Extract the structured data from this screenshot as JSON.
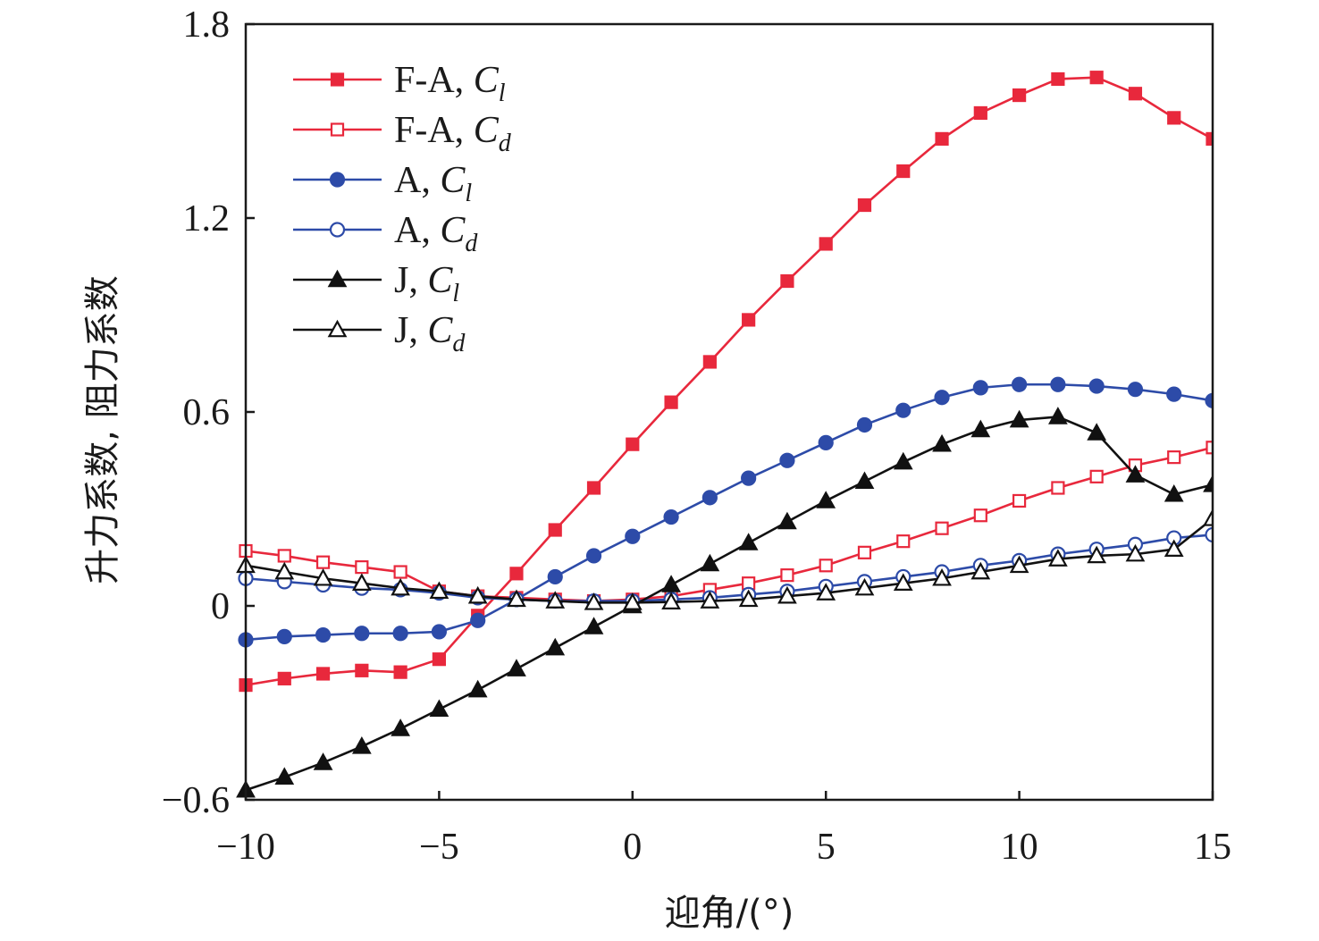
{
  "chart_data": {
    "type": "line",
    "title": "",
    "xlabel": "迎角/(°)",
    "ylabel": "升力系数, 阻力系数",
    "xlim": [
      -10,
      15
    ],
    "ylim": [
      -0.6,
      1.8
    ],
    "xticks": [
      -10,
      -5,
      0,
      5,
      10,
      15
    ],
    "yticks": [
      -0.6,
      0,
      0.6,
      1.2,
      1.8
    ],
    "xtick_labels": [
      "−10",
      "−5",
      "0",
      "5",
      "10",
      "15"
    ],
    "ytick_labels": [
      "−0.6",
      "0",
      "0.6",
      "1.2",
      "1.8"
    ],
    "grid": false,
    "legend_position": "top-left",
    "x": [
      -10,
      -9,
      -8,
      -7,
      -6,
      -5,
      -4,
      -3,
      -2,
      -1,
      0,
      1,
      2,
      3,
      4,
      5,
      6,
      7,
      8,
      9,
      10,
      11,
      12,
      13,
      14,
      15
    ],
    "series": [
      {
        "name": "F-A, Cl",
        "label_main": "F-A, ",
        "label_var": "C",
        "label_sub": "l",
        "color": "#e8283c",
        "marker": "square",
        "filled": true,
        "values": [
          -0.245,
          -0.225,
          -0.21,
          -0.2,
          -0.205,
          -0.165,
          -0.03,
          0.1,
          0.235,
          0.365,
          0.5,
          0.63,
          0.755,
          0.885,
          1.005,
          1.12,
          1.24,
          1.345,
          1.445,
          1.525,
          1.58,
          1.63,
          1.635,
          1.585,
          1.51,
          1.445
        ]
      },
      {
        "name": "F-A, Cd",
        "label_main": "F-A, ",
        "label_var": "C",
        "label_sub": "d",
        "color": "#e8283c",
        "marker": "square",
        "filled": false,
        "values": [
          0.17,
          0.155,
          0.135,
          0.12,
          0.105,
          0.045,
          0.03,
          0.025,
          0.02,
          0.015,
          0.02,
          0.03,
          0.05,
          0.07,
          0.095,
          0.125,
          0.165,
          0.2,
          0.24,
          0.28,
          0.325,
          0.365,
          0.4,
          0.435,
          0.46,
          0.49
        ]
      },
      {
        "name": "A, Cl",
        "label_main": "A, ",
        "label_var": "C",
        "label_sub": "l",
        "color": "#2d4ba8",
        "marker": "circle",
        "filled": true,
        "values": [
          -0.105,
          -0.095,
          -0.09,
          -0.085,
          -0.085,
          -0.08,
          -0.045,
          0.02,
          0.09,
          0.155,
          0.215,
          0.275,
          0.335,
          0.395,
          0.45,
          0.505,
          0.56,
          0.605,
          0.645,
          0.675,
          0.685,
          0.685,
          0.68,
          0.67,
          0.655,
          0.635
        ]
      },
      {
        "name": "A, Cd",
        "label_main": "A, ",
        "label_var": "C",
        "label_sub": "d",
        "color": "#2d4ba8",
        "marker": "circle",
        "filled": false,
        "values": [
          0.085,
          0.075,
          0.065,
          0.055,
          0.05,
          0.04,
          0.025,
          0.02,
          0.015,
          0.015,
          0.015,
          0.02,
          0.025,
          0.035,
          0.045,
          0.06,
          0.075,
          0.09,
          0.105,
          0.125,
          0.14,
          0.16,
          0.175,
          0.19,
          0.21,
          0.22
        ]
      },
      {
        "name": "J, Cl",
        "label_main": "J, ",
        "label_var": "C",
        "label_sub": "l",
        "color": "#111111",
        "marker": "triangle",
        "filled": true,
        "values": [
          -0.57,
          -0.53,
          -0.485,
          -0.435,
          -0.38,
          -0.32,
          -0.26,
          -0.195,
          -0.13,
          -0.065,
          0.0,
          0.065,
          0.13,
          0.195,
          0.26,
          0.325,
          0.385,
          0.445,
          0.5,
          0.545,
          0.575,
          0.585,
          0.535,
          0.405,
          0.345,
          0.375
        ]
      },
      {
        "name": "J, Cd",
        "label_main": "J, ",
        "label_var": "C",
        "label_sub": "d",
        "color": "#111111",
        "marker": "triangle",
        "filled": false,
        "values": [
          0.125,
          0.105,
          0.085,
          0.07,
          0.055,
          0.045,
          0.03,
          0.02,
          0.015,
          0.01,
          0.01,
          0.012,
          0.015,
          0.02,
          0.03,
          0.04,
          0.055,
          0.07,
          0.085,
          0.105,
          0.125,
          0.145,
          0.155,
          0.16,
          0.175,
          0.27
        ]
      }
    ]
  }
}
